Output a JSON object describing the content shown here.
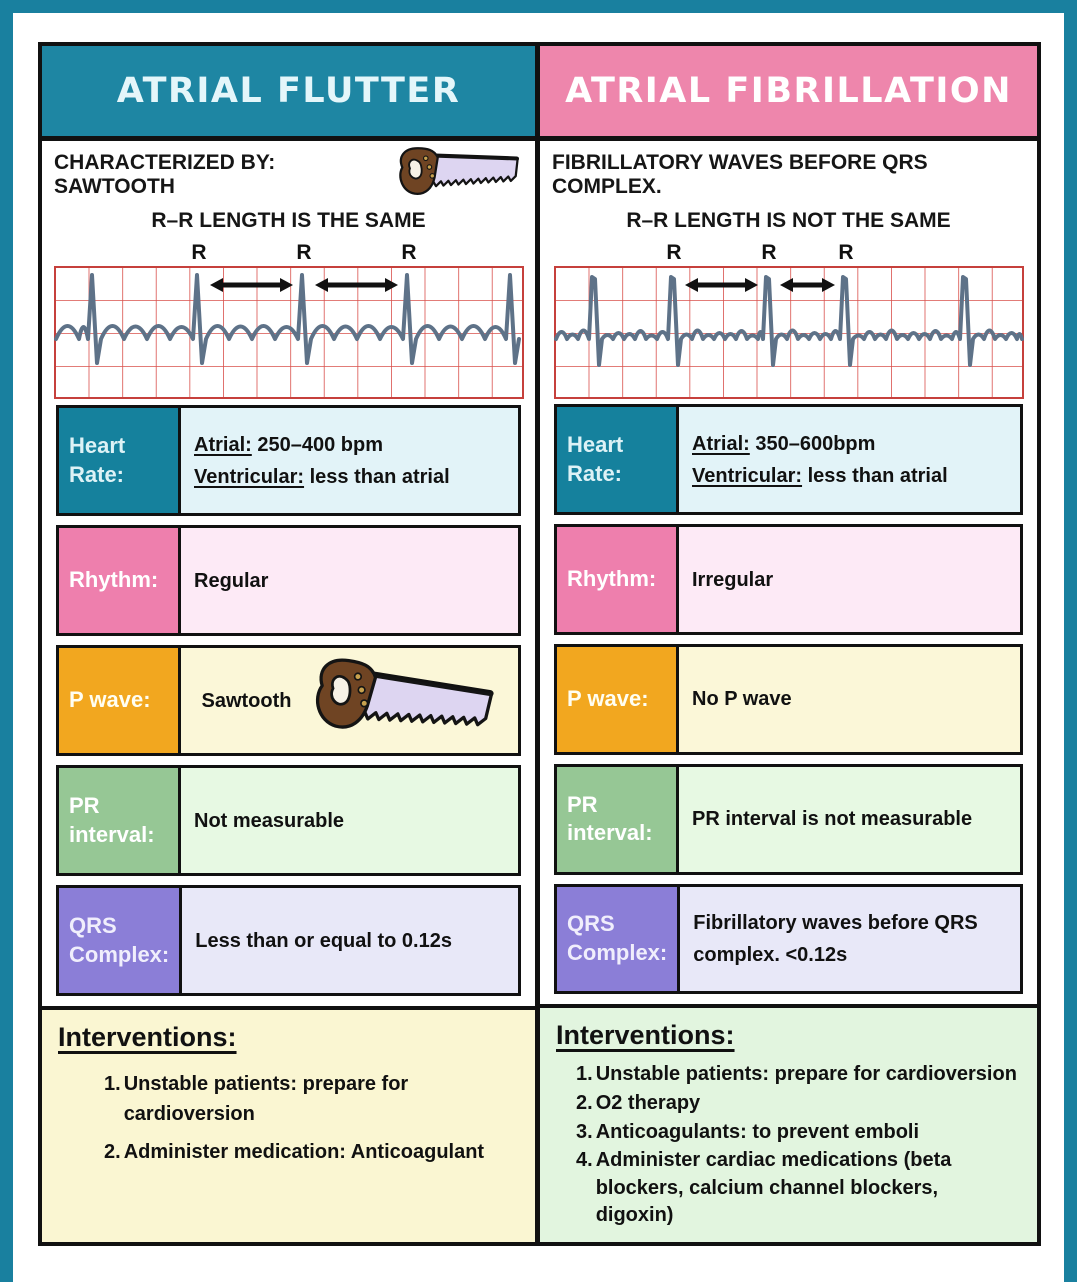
{
  "colors": {
    "frame_teal": "#19809f",
    "header_teal": "#1e86a3",
    "header_pink": "#ee86ac",
    "label_orange": "#f2a71f",
    "label_green": "#96c795",
    "label_purple": "#8b7ed7",
    "ecg_grid_red": "#d9504c",
    "ecg_wave_gray_blue": "#5e7288"
  },
  "columns": [
    {
      "header": {
        "label": "ATRIAL FLUTTER"
      },
      "description": {
        "line1": "CHARACTERIZED BY: SAWTOOTH",
        "line2": "R–R LENGTH IS THE SAME"
      },
      "ecg": {
        "waveform": "sawtooth",
        "r_label": "R",
        "spike_x": [
          40,
          145,
          250,
          355,
          458
        ],
        "labeled": [
          1,
          2,
          3
        ]
      },
      "rows": [
        {
          "label": "Heart Rate:",
          "lines": [
            {
              "prefix": "Atrial:",
              "rest": " 250–400 bpm"
            },
            {
              "prefix": "Ventricular:",
              "rest": " less than atrial"
            }
          ]
        },
        {
          "label": "Rhythm:",
          "value": "Regular"
        },
        {
          "label": "P wave:",
          "value": "Sawtooth"
        },
        {
          "label": "PR interval:",
          "value": "Not measurable"
        },
        {
          "label": "QRS Complex:",
          "value": "Less than or equal to 0.12s"
        }
      ],
      "interventions": {
        "heading": "Interventions:",
        "items": [
          {
            "num": "1.",
            "text": "Unstable patients: prepare for cardioversion"
          },
          {
            "num": "2.",
            "text": "Administer medication: Anticoagulant"
          }
        ]
      }
    },
    {
      "header": {
        "label": "ATRIAL FIBRILLATION"
      },
      "description": {
        "line1": "FIBRILLATORY WAVES BEFORE QRS COMPLEX.",
        "line2": "R–R LENGTH IS NOT THE SAME"
      },
      "ecg": {
        "waveform": "fibrillatory",
        "r_label": "R",
        "spike_x": [
          42,
          120,
          215,
          292,
          412
        ],
        "labeled": [
          1,
          2,
          3
        ]
      },
      "rows": [
        {
          "label": "Heart Rate:",
          "lines": [
            {
              "prefix": "Atrial:",
              "rest": " 350–600bpm"
            },
            {
              "prefix": "Ventricular:",
              "rest": " less than atrial"
            }
          ]
        },
        {
          "label": "Rhythm:",
          "value": "Irregular"
        },
        {
          "label": "P wave:",
          "value": "No P wave"
        },
        {
          "label": "PR interval:",
          "value": "PR interval is not measurable"
        },
        {
          "label": "QRS Complex:",
          "value": "Fibrillatory waves before QRS complex. <0.12s"
        }
      ],
      "interventions": {
        "heading": "Interventions:",
        "items": [
          {
            "num": "1.",
            "text": "Unstable patients: prepare for cardioversion"
          },
          {
            "num": "2.",
            "text": "O2 therapy"
          },
          {
            "num": "3.",
            "text": "Anticoagulants: to prevent emboli"
          },
          {
            "num": "4.",
            "text": "Administer cardiac medications (beta blockers, calcium channel blockers, digoxin)"
          }
        ]
      }
    }
  ]
}
